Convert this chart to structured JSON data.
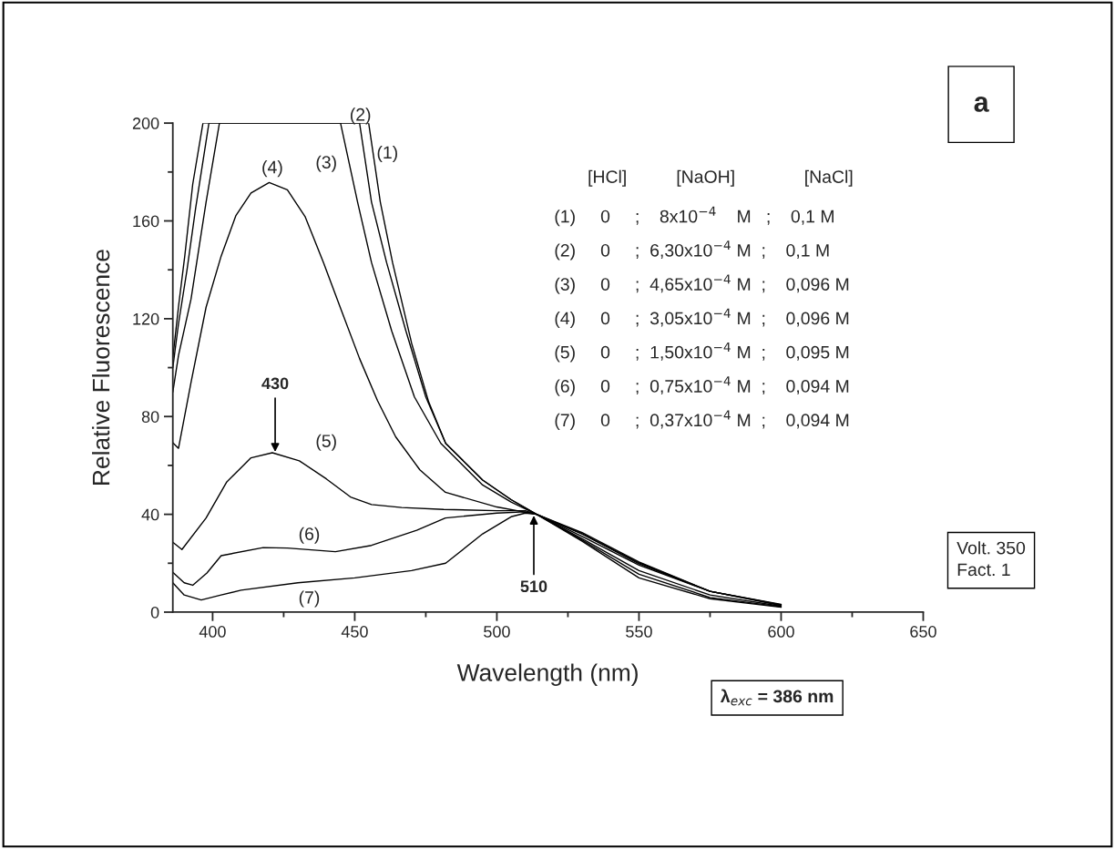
{
  "chart_data": {
    "type": "line",
    "xlabel": "Wavelength (nm)",
    "ylabel": "Relative Fluorescence",
    "xlim": [
      386,
      650
    ],
    "xticks": [
      400,
      450,
      500,
      550,
      600,
      650
    ],
    "ylim": [
      0,
      200
    ],
    "yticks": [
      0,
      40,
      80,
      120,
      160,
      200
    ],
    "grid": false,
    "marker": "none",
    "line_style": "solid",
    "series": [
      {
        "name": "(1)",
        "color": "#000000",
        "x": [
          386,
          388,
          390.2,
          393,
          396.6,
          454.9,
          459,
          463.3,
          470,
          476,
          482,
          495,
          505,
          514,
          530,
          550,
          575,
          600
        ],
        "values": [
          104,
          125,
          145.6,
          175,
          200,
          200,
          167.7,
          143,
          110,
          86,
          69,
          54,
          46,
          40,
          29,
          14,
          5.5,
          2
        ]
      },
      {
        "name": "(2)",
        "color": "#000000",
        "x": [
          386,
          388,
          391,
          394,
          398.7,
          451.7,
          455.9,
          461.2,
          468,
          475,
          482,
          495,
          505,
          514,
          530,
          550,
          575,
          600
        ],
        "values": [
          100,
          118,
          140,
          165,
          200,
          200,
          167.7,
          143,
          115,
          88,
          69,
          54,
          46,
          40,
          29.5,
          15.5,
          6,
          2.2
        ]
      },
      {
        "name": "(3)",
        "color": "#000000",
        "x": [
          386,
          388,
          392.4,
          397.7,
          402.4,
          445,
          451,
          455.9,
          463,
          471,
          480.3,
          495,
          505,
          514,
          530,
          550,
          575,
          600
        ],
        "values": [
          90,
          105,
          128,
          167.7,
          200,
          200,
          167.7,
          143,
          115,
          88,
          69,
          52,
          45,
          40,
          30,
          17,
          7,
          2.4
        ]
      },
      {
        "name": "(4)",
        "color": "#000000",
        "x": [
          386,
          388,
          392.4,
          397.7,
          403,
          408.2,
          413.5,
          419.9,
          426.3,
          432.6,
          439,
          445.3,
          451.7,
          458,
          464.4,
          472.9,
          481.9,
          500,
          514,
          530,
          550,
          575,
          600
        ],
        "values": [
          69.3,
          67,
          93.9,
          124.7,
          145.6,
          162.2,
          171.4,
          175.7,
          172.7,
          161.6,
          143,
          123.4,
          103.7,
          86.5,
          71.7,
          58.2,
          49,
          43,
          40,
          31,
          19.2,
          8.5,
          2.7
        ]
      },
      {
        "name": "(5)",
        "color": "#000000",
        "x": [
          386,
          389.2,
          397.7,
          405,
          413.5,
          421,
          430.5,
          440,
          448.5,
          455.9,
          466.5,
          481.3,
          500,
          510,
          514,
          530,
          550,
          575,
          600
        ],
        "values": [
          28.6,
          25.6,
          38.5,
          53.3,
          63.1,
          65.2,
          61.9,
          54.5,
          47.1,
          44,
          42.8,
          42,
          41.5,
          41.5,
          40,
          32,
          19.8,
          8.5,
          2.9
        ]
      },
      {
        "name": "(6)",
        "color": "#000000",
        "x": [
          386,
          390,
          393,
          398,
          403,
          417.8,
          426.3,
          443.2,
          455.9,
          471.8,
          481.9,
          500,
          510,
          514,
          530,
          550,
          575,
          600
        ],
        "values": [
          16.3,
          12,
          11,
          16,
          23.1,
          26.4,
          26.2,
          24.7,
          27.3,
          33.5,
          38.5,
          40.5,
          41,
          40,
          32,
          20.2,
          8.5,
          3
        ]
      },
      {
        "name": "(7)",
        "color": "#000000",
        "x": [
          386,
          390,
          396,
          403,
          410,
          430,
          450,
          470,
          482,
          495,
          505,
          510,
          514,
          530,
          550,
          575,
          600
        ],
        "values": [
          12,
          7,
          5,
          7,
          9,
          12,
          14,
          17,
          20,
          32,
          39,
          40.5,
          40,
          32.5,
          20.5,
          8.5,
          3.2
        ]
      }
    ],
    "annotations": [
      {
        "text": "430",
        "x": 422,
        "y": 65
      },
      {
        "text": "510",
        "x": 513,
        "y": 40
      },
      "[HCl]          [NaOH]              [NaCl]",
      "(1)     0     ;    8x10$^{−4}$    M   ;    0,1 M",
      "(2)     0     ;  6,30x10$^{−4}$ M  ;    0,1 M",
      "(3)     0     ;  4,65x10$^{−4}$ M  ;    0,096 M",
      "(4)     0     ;  3,05x10$^{−4}$ M  ;    0,096 M",
      "(5)     0     ;  1,50x10$^{−4}$ M  ;    0,095 M",
      "(6)     0     ;  0,75x10$^{−4}$ M  ;    0,094 M",
      "(7)     0     ;  0,37x10$^{−4}$ M  ;    0,094 M",
      "a",
      "Volt. 350\nFact. 1",
      "λ$_{exc}$ = 386 nm"
    ]
  }
}
